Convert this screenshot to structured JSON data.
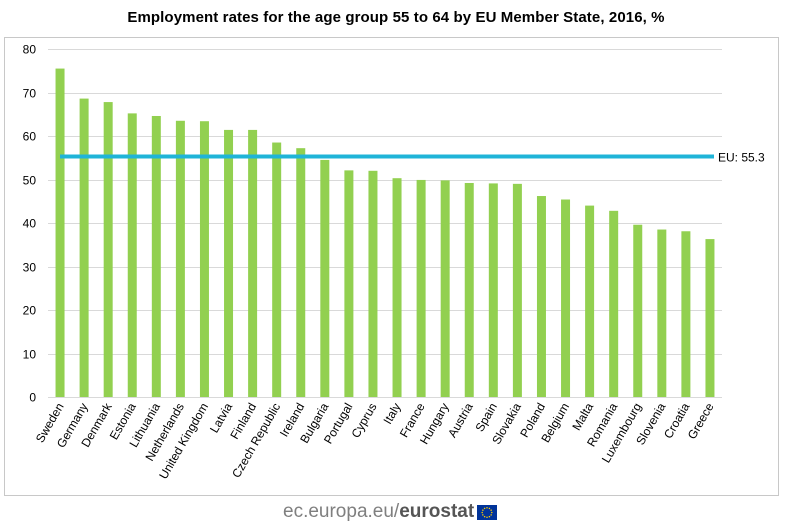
{
  "chart_data": {
    "type": "bar",
    "title": "Employment rates for the age group 55 to 64 by EU Member State, 2016, %",
    "xlabel": "",
    "ylabel": "",
    "ylim": [
      0,
      80
    ],
    "yticks": [
      0,
      10,
      20,
      30,
      40,
      50,
      60,
      70,
      80
    ],
    "grid": true,
    "categories": [
      "Sweden",
      "Germany",
      "Denmark",
      "Estonia",
      "Lithuania",
      "Netherlands",
      "United Kingdom",
      "Latvia",
      "Finland",
      "Czech Republic",
      "Ireland",
      "Bulgaria",
      "Portugal",
      "Cyprus",
      "Italy",
      "France",
      "Hungary",
      "Austria",
      "Spain",
      "Slovakia",
      "Poland",
      "Belgium",
      "Malta",
      "Romania",
      "Luxembourg",
      "Slovenia",
      "Croatia",
      "Greece"
    ],
    "values": [
      75.5,
      68.6,
      67.8,
      65.2,
      64.6,
      63.5,
      63.4,
      61.4,
      61.4,
      58.5,
      57.2,
      54.5,
      52.1,
      52.0,
      50.3,
      49.9,
      49.8,
      49.2,
      49.1,
      49.0,
      46.2,
      45.4,
      44.0,
      42.8,
      39.6,
      38.5,
      38.1,
      36.3
    ],
    "bar_color": "#92d050",
    "reference_line": {
      "value": 55.3,
      "label": "EU: 55.3",
      "color": "#1fb4d8"
    }
  },
  "footer": {
    "domain": "ec.europa.eu",
    "separator": "/",
    "brand": "eurostat",
    "flag_icon": "eu-flag-icon"
  },
  "colors": {
    "grid": "#d9d9d9",
    "axis_text": "#000000",
    "flag_blue": "#003399",
    "flag_star": "#ffcc00"
  }
}
